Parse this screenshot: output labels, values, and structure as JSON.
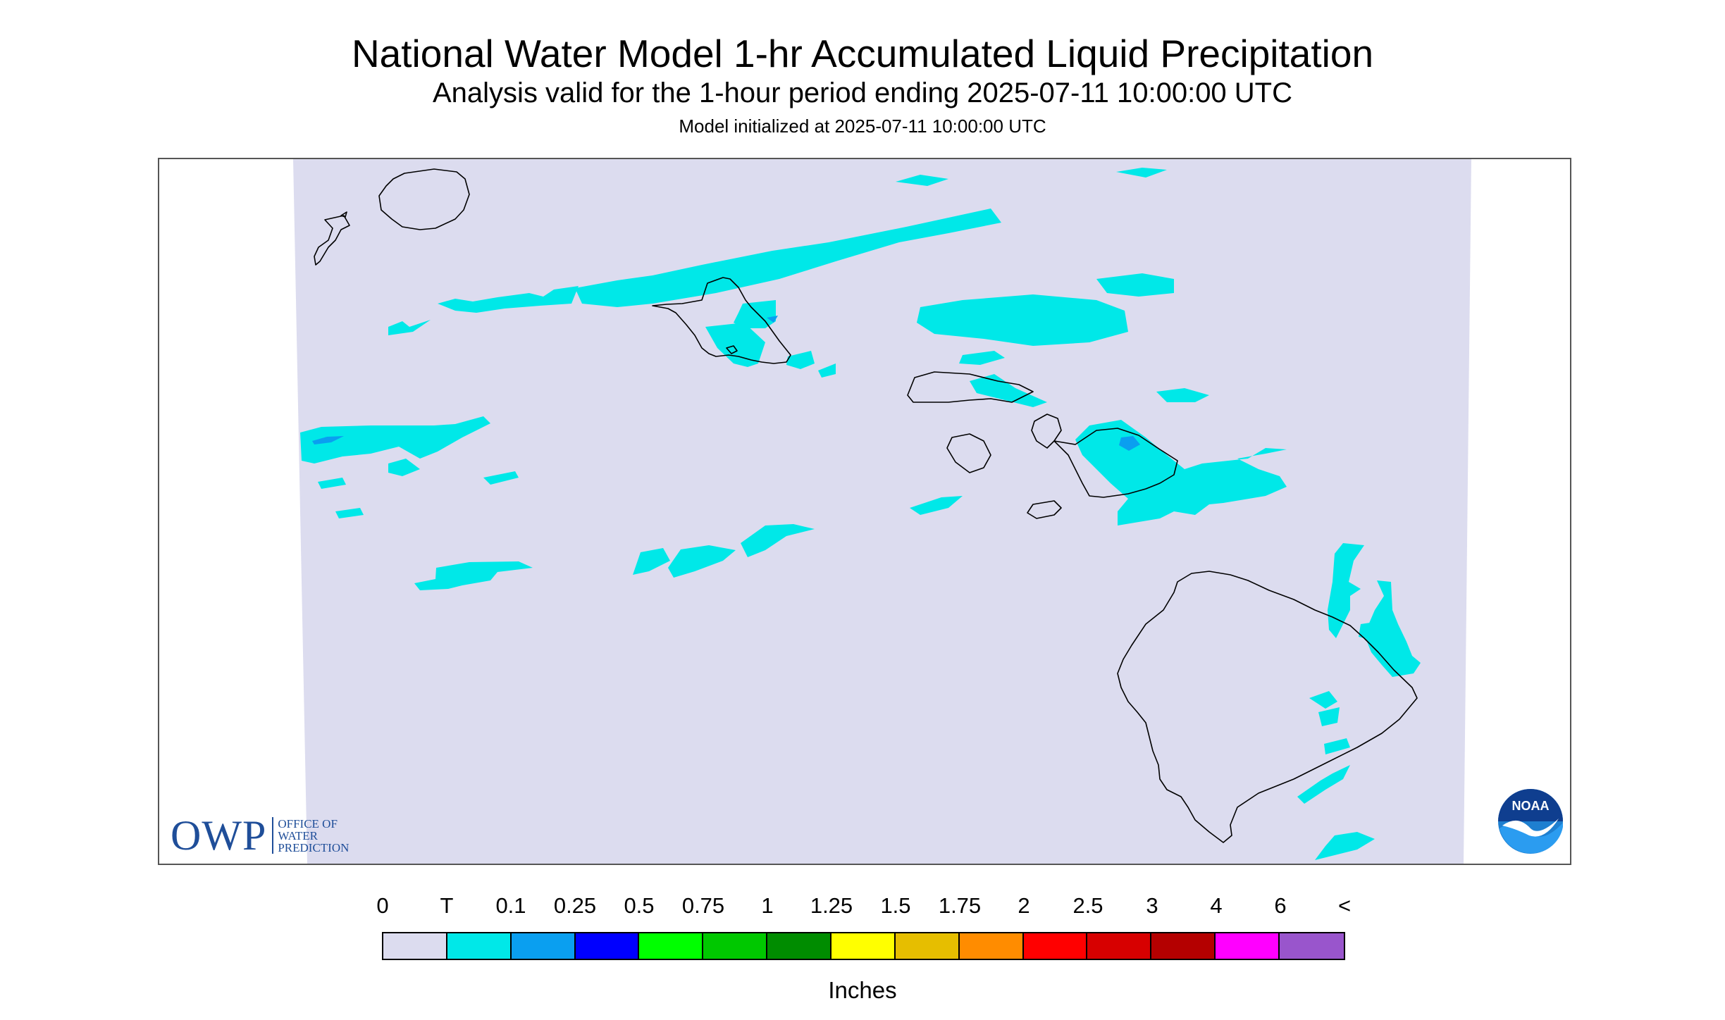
{
  "header": {
    "title": "National Water Model 1-hr Accumulated Liquid Precipitation",
    "subtitle": "Analysis valid for the 1-hour period ending 2025-07-11 10:00:00 UTC",
    "init": "Model initialized at 2025-07-11 10:00:00 UTC"
  },
  "map": {
    "region": "Hawaiian Islands",
    "background_color": "#dcdcef",
    "trace_color": "#00e8e8",
    "light_color": "#0a9ff0",
    "coast_color": "#000000"
  },
  "logos": {
    "owp": {
      "letters": "OWP",
      "line1": "OFFICE OF",
      "line2": "WATER",
      "line3": "PREDICTION"
    },
    "noaa": {
      "text": "NOAA"
    }
  },
  "legend": {
    "labels": [
      "0",
      "T",
      "0.1",
      "0.25",
      "0.5",
      "0.75",
      "1",
      "1.25",
      "1.5",
      "1.75",
      "2",
      "2.5",
      "3",
      "4",
      "6",
      "<"
    ],
    "colors": [
      "#dcdcef",
      "#00e8e8",
      "#0a9ff0",
      "#0000ff",
      "#00ff00",
      "#00c800",
      "#008c00",
      "#ffff00",
      "#e6be00",
      "#ff8c00",
      "#ff0000",
      "#d70000",
      "#b40000",
      "#ff00ff",
      "#9955cc"
    ],
    "units": "Inches"
  }
}
